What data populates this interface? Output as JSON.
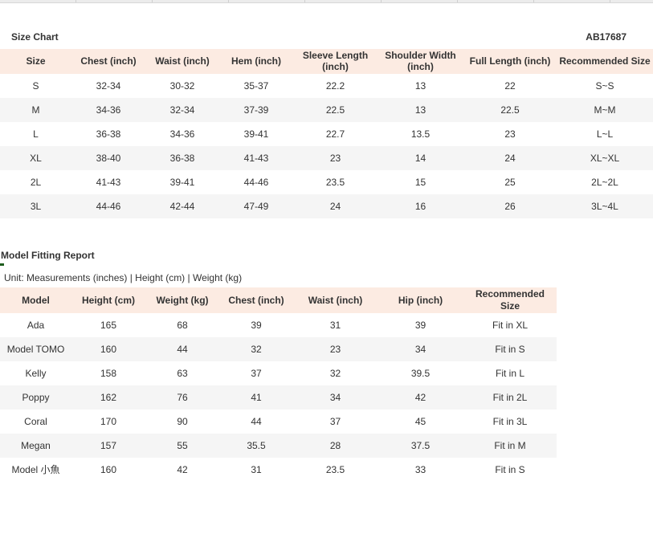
{
  "product_code": "AB17687",
  "size_chart": {
    "title": "Size Chart",
    "columns": [
      "Size",
      "Chest (inch)",
      "Waist (inch)",
      "Hem (inch)",
      "Sleeve Length (inch)",
      "Shoulder Width (inch)",
      "Full Length (inch)",
      "Recommended Size"
    ],
    "rows": [
      [
        "S",
        "32-34",
        "30-32",
        "35-37",
        "22.2",
        "13",
        "22",
        "S~S"
      ],
      [
        "M",
        "34-36",
        "32-34",
        "37-39",
        "22.5",
        "13",
        "22.5",
        "M~M"
      ],
      [
        "L",
        "36-38",
        "34-36",
        "39-41",
        "22.7",
        "13.5",
        "23",
        "L~L"
      ],
      [
        "XL",
        "38-40",
        "36-38",
        "41-43",
        "23",
        "14",
        "24",
        "XL~XL"
      ],
      [
        "2L",
        "41-43",
        "39-41",
        "44-46",
        "23.5",
        "15",
        "25",
        "2L~2L"
      ],
      [
        "3L",
        "44-46",
        "42-44",
        "47-49",
        "24",
        "16",
        "26",
        "3L~4L"
      ]
    ]
  },
  "model_fitting": {
    "title": "Model Fitting Report",
    "unit_note": "Unit: Measurements (inches) | Height (cm) | Weight (kg)",
    "columns": [
      "Model",
      "Height (cm)",
      "Weight (kg)",
      "Chest (inch)",
      "Waist (inch)",
      "Hip (inch)",
      "Recommended Size"
    ],
    "rows": [
      [
        "Ada",
        "165",
        "68",
        "39",
        "31",
        "39",
        "Fit in XL"
      ],
      [
        "Model TOMO",
        "160",
        "44",
        "32",
        "23",
        "34",
        "Fit in S"
      ],
      [
        "Kelly",
        "158",
        "63",
        "37",
        "32",
        "39.5",
        "Fit in L"
      ],
      [
        "Poppy",
        "162",
        "76",
        "41",
        "34",
        "42",
        "Fit in 2L"
      ],
      [
        "Coral",
        "170",
        "90",
        "44",
        "37",
        "45",
        "Fit in 3L"
      ],
      [
        "Megan",
        "157",
        "55",
        "35.5",
        "28",
        "37.5",
        "Fit in M"
      ],
      [
        "Model 小魚",
        "160",
        "42",
        "31",
        "23.5",
        "33",
        "Fit in S"
      ]
    ]
  },
  "colors": {
    "table_header_bg": "#fcebe2",
    "alt_row_bg": "#f5f5f5",
    "text": "#333333"
  }
}
